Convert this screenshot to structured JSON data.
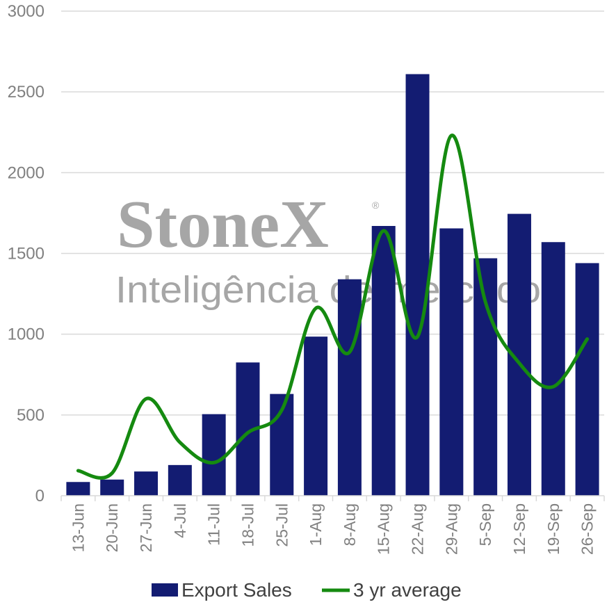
{
  "chart_data": {
    "type": "bar",
    "categories": [
      "13-Jun",
      "20-Jun",
      "27-Jun",
      "4-Jul",
      "11-Jul",
      "18-Jul",
      "25-Jul",
      "1-Aug",
      "8-Aug",
      "15-Aug",
      "22-Aug",
      "29-Aug",
      "5-Sep",
      "12-Sep",
      "19-Sep",
      "26-Sep"
    ],
    "series": [
      {
        "name": "Export Sales",
        "type": "bar",
        "color": "#131c72",
        "values": [
          85,
          100,
          150,
          190,
          505,
          825,
          630,
          985,
          1340,
          1670,
          2610,
          1655,
          1470,
          1745,
          1570,
          1440
        ]
      },
      {
        "name": "3 yr average",
        "type": "line",
        "color": "#158a10",
        "values": [
          155,
          140,
          600,
          330,
          205,
          390,
          530,
          1160,
          890,
          1640,
          985,
          2230,
          1200,
          820,
          675,
          970
        ]
      }
    ],
    "ylim": [
      0,
      3000
    ],
    "yticks": [
      0,
      500,
      1000,
      1500,
      2000,
      2500,
      3000
    ],
    "grid": true,
    "legend_position": "bottom",
    "watermark": {
      "brand": "StoneX",
      "mark": "®",
      "tagline": "Inteligência de mercado"
    },
    "title": "",
    "xlabel": "",
    "ylabel": ""
  }
}
